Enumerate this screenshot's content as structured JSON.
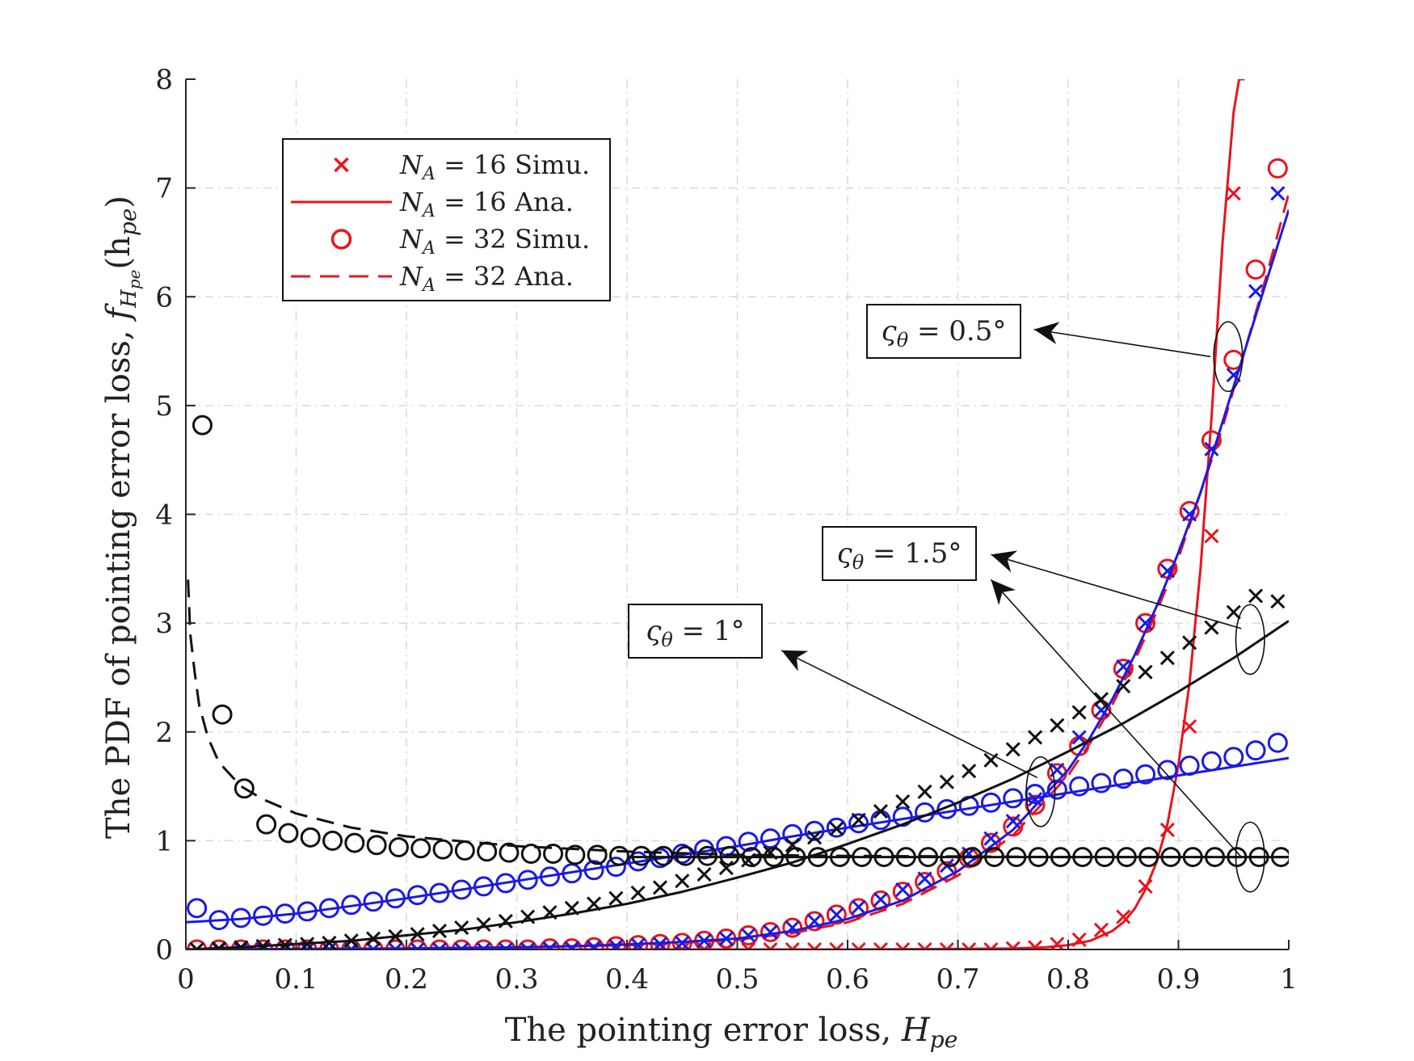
{
  "chart_data": {
    "type": "line",
    "xlabel": "The pointing error loss, ",
    "xlabel_var": "H",
    "xlabel_sub": "pe",
    "ylabel": "The PDF of pointing error loss, ",
    "ylabel_var": "f",
    "ylabel_sub": "H",
    "ylabel_subsub": "pe",
    "ylabel_arg": "(h",
    "ylabel_arg_sub": "pe",
    "ylabel_close": ")",
    "xlim": [
      0,
      1
    ],
    "ylim": [
      0,
      8
    ],
    "grid": true,
    "xticks": [
      0,
      0.1,
      0.2,
      0.3,
      0.4,
      0.5,
      0.6,
      0.7,
      0.8,
      0.9,
      1
    ],
    "xtick_labels": [
      "0",
      "0.1",
      "0.2",
      "0.3",
      "0.4",
      "0.5",
      "0.6",
      "0.7",
      "0.8",
      "0.9",
      "1"
    ],
    "yticks": [
      0,
      1,
      2,
      3,
      4,
      5,
      6,
      7,
      8
    ],
    "ytick_labels": [
      "0",
      "1",
      "2",
      "3",
      "4",
      "5",
      "6",
      "7",
      "8"
    ],
    "legend": {
      "placement": "top-left",
      "entries": [
        {
          "label": "N",
          "sub": "A",
          "rest": " = 16 Simu.",
          "marker": "x",
          "line": "none",
          "color": "#e8141e"
        },
        {
          "label": "N",
          "sub": "A",
          "rest": " = 16 Ana.",
          "marker": "none",
          "line": "solid",
          "color": "#e8141e"
        },
        {
          "label": "N",
          "sub": "A",
          "rest": " = 32 Simu.",
          "marker": "o",
          "line": "none",
          "color": "#e8141e"
        },
        {
          "label": "N",
          "sub": "A",
          "rest": " = 32 Ana.",
          "marker": "none",
          "line": "dashed",
          "color": "#e8141e"
        }
      ]
    },
    "annotations": [
      {
        "sym": "ς",
        "sub": "θ",
        "text": " = 0.5°",
        "target_x": 0.95,
        "target_y": 5.4,
        "label_x": 0.82,
        "label_y": 5.68
      },
      {
        "sym": "ς",
        "sub": "θ",
        "text": " = 1.5°",
        "target_x": 0.97,
        "target_y": 2.9,
        "label_x": 0.73,
        "label_y": 3.68
      },
      {
        "sym": "ς",
        "sub": "θ",
        "text": " = 1°",
        "target_x": 0.77,
        "target_y": 1.5,
        "label_x": 0.54,
        "label_y": 2.75
      }
    ],
    "ellipses": [
      {
        "cx": 0.945,
        "cy": 5.45,
        "rx": 0.013,
        "ry": 0.32
      },
      {
        "cx": 0.965,
        "cy": 2.85,
        "rx": 0.013,
        "ry": 0.32
      },
      {
        "cx": 0.775,
        "cy": 1.45,
        "rx": 0.013,
        "ry": 0.32
      },
      {
        "cx": 0.965,
        "cy": 0.85,
        "rx": 0.013,
        "ry": 0.32
      }
    ],
    "series": [
      {
        "name": "0.5deg NA=16 Ana.",
        "color": "#e8141e",
        "style": "solid",
        "x": [
          0,
          0.1,
          0.2,
          0.3,
          0.4,
          0.5,
          0.6,
          0.7,
          0.75,
          0.78,
          0.8,
          0.82,
          0.84,
          0.85,
          0.86,
          0.87,
          0.88,
          0.89,
          0.9,
          0.91,
          0.92,
          0.93,
          0.94,
          0.95,
          0.955,
          0.96
        ],
        "y": [
          0,
          0,
          0,
          0,
          0,
          0,
          0,
          0.005,
          0.01,
          0.02,
          0.04,
          0.08,
          0.17,
          0.25,
          0.37,
          0.55,
          0.8,
          1.15,
          1.7,
          2.45,
          3.5,
          4.9,
          6.5,
          7.7,
          8.0,
          8.0
        ]
      },
      {
        "name": "0.5deg NA=16 Simu.",
        "color": "#e8141e",
        "marker": "x",
        "x": [
          0.01,
          0.03,
          0.05,
          0.07,
          0.09,
          0.11,
          0.13,
          0.15,
          0.17,
          0.19,
          0.21,
          0.23,
          0.25,
          0.27,
          0.29,
          0.31,
          0.33,
          0.35,
          0.37,
          0.39,
          0.41,
          0.43,
          0.45,
          0.47,
          0.49,
          0.51,
          0.53,
          0.55,
          0.57,
          0.59,
          0.61,
          0.63,
          0.65,
          0.67,
          0.69,
          0.71,
          0.73,
          0.75,
          0.77,
          0.79,
          0.81,
          0.83,
          0.85,
          0.87,
          0.89,
          0.91,
          0.93,
          0.95
        ],
        "y": [
          0,
          0,
          0,
          0,
          0,
          0,
          0,
          0,
          0,
          0,
          0,
          0,
          0,
          0,
          0,
          0,
          0,
          0,
          0,
          0,
          0,
          0,
          0,
          0,
          0,
          0,
          0,
          0,
          0,
          0,
          0,
          0,
          0,
          0,
          0,
          0,
          0,
          0.01,
          0.02,
          0.05,
          0.09,
          0.18,
          0.3,
          0.58,
          1.1,
          2.05,
          3.8,
          6.95
        ]
      },
      {
        "name": "0.5deg NA=32 Ana.",
        "color": "#e8141e",
        "style": "dashed",
        "x": [
          0,
          0.1,
          0.2,
          0.3,
          0.35,
          0.4,
          0.45,
          0.5,
          0.55,
          0.6,
          0.65,
          0.7,
          0.75,
          0.8,
          0.82,
          0.84,
          0.86,
          0.88,
          0.9,
          0.92,
          0.94,
          0.96,
          0.98,
          1.0
        ],
        "y": [
          0,
          0.005,
          0.01,
          0.02,
          0.03,
          0.04,
          0.06,
          0.09,
          0.15,
          0.25,
          0.42,
          0.68,
          1.05,
          1.6,
          1.9,
          2.25,
          2.65,
          3.1,
          3.6,
          4.2,
          4.8,
          5.5,
          6.2,
          6.95
        ]
      },
      {
        "name": "0.5deg NA=32 Simu.",
        "color": "#e8141e",
        "marker": "o",
        "x": [
          0.01,
          0.03,
          0.05,
          0.07,
          0.09,
          0.11,
          0.13,
          0.15,
          0.17,
          0.19,
          0.21,
          0.23,
          0.25,
          0.27,
          0.29,
          0.31,
          0.33,
          0.35,
          0.37,
          0.39,
          0.41,
          0.43,
          0.45,
          0.47,
          0.49,
          0.51,
          0.53,
          0.55,
          0.57,
          0.59,
          0.61,
          0.63,
          0.65,
          0.67,
          0.69,
          0.71,
          0.73,
          0.75,
          0.77,
          0.79,
          0.81,
          0.83,
          0.85,
          0.87,
          0.89,
          0.91,
          0.93,
          0.95,
          0.97,
          0.99
        ],
        "y": [
          0,
          0,
          0,
          0,
          0,
          0,
          0,
          0,
          0,
          0,
          0,
          0,
          0,
          0,
          0,
          0,
          0.01,
          0.01,
          0.02,
          0.03,
          0.04,
          0.05,
          0.06,
          0.08,
          0.1,
          0.13,
          0.16,
          0.2,
          0.26,
          0.32,
          0.38,
          0.45,
          0.53,
          0.62,
          0.72,
          0.84,
          0.98,
          1.13,
          1.33,
          1.62,
          1.87,
          2.2,
          2.58,
          3.0,
          3.5,
          4.03,
          4.68,
          5.42,
          6.25,
          7.18
        ]
      },
      {
        "name": "0.5deg NA=16 blue Ana.",
        "color": "#1a1ae6",
        "style": "solid",
        "x": [
          0,
          0.1,
          0.2,
          0.3,
          0.35,
          0.4,
          0.45,
          0.5,
          0.55,
          0.6,
          0.65,
          0.7,
          0.75,
          0.8,
          0.82,
          0.84,
          0.86,
          0.88,
          0.9,
          0.92,
          0.94,
          0.96,
          0.98,
          1.0
        ],
        "y": [
          0,
          0.005,
          0.01,
          0.02,
          0.03,
          0.045,
          0.07,
          0.1,
          0.17,
          0.28,
          0.45,
          0.72,
          1.1,
          1.65,
          1.95,
          2.3,
          2.7,
          3.15,
          3.65,
          4.2,
          4.85,
          5.5,
          6.15,
          6.8
        ]
      },
      {
        "name": "0.5deg NA=16 blue Simu.",
        "color": "#1a1ae6",
        "marker": "x",
        "x": [
          0.01,
          0.03,
          0.05,
          0.07,
          0.09,
          0.11,
          0.13,
          0.15,
          0.17,
          0.19,
          0.21,
          0.23,
          0.25,
          0.27,
          0.29,
          0.31,
          0.33,
          0.35,
          0.37,
          0.39,
          0.41,
          0.43,
          0.45,
          0.47,
          0.49,
          0.51,
          0.53,
          0.55,
          0.57,
          0.59,
          0.61,
          0.63,
          0.65,
          0.67,
          0.69,
          0.71,
          0.73,
          0.75,
          0.77,
          0.79,
          0.81,
          0.83,
          0.85,
          0.87,
          0.89,
          0.91,
          0.93,
          0.95,
          0.97,
          0.99
        ],
        "y": [
          0,
          0,
          0,
          0,
          0,
          0,
          0,
          0,
          0,
          0,
          0,
          0,
          0,
          0,
          0,
          0,
          0.01,
          0.01,
          0.02,
          0.03,
          0.04,
          0.05,
          0.06,
          0.08,
          0.1,
          0.13,
          0.16,
          0.2,
          0.26,
          0.32,
          0.39,
          0.46,
          0.55,
          0.65,
          0.77,
          0.88,
          1.02,
          1.18,
          1.38,
          1.65,
          1.95,
          2.2,
          2.6,
          3.0,
          3.48,
          4.0,
          4.6,
          5.28,
          6.05,
          6.95
        ]
      },
      {
        "name": "1.5deg blue Ana.",
        "color": "#1a1ae6",
        "style": "solid",
        "x": [
          0,
          0.05,
          0.1,
          0.15,
          0.2,
          0.25,
          0.3,
          0.35,
          0.4,
          0.45,
          0.5,
          0.55,
          0.6,
          0.65,
          0.7,
          0.75,
          0.8,
          0.85,
          0.9,
          0.95,
          1.0
        ],
        "y": [
          0.25,
          0.28,
          0.33,
          0.4,
          0.47,
          0.55,
          0.63,
          0.71,
          0.79,
          0.87,
          0.95,
          1.04,
          1.12,
          1.2,
          1.28,
          1.36,
          1.44,
          1.52,
          1.6,
          1.68,
          1.76
        ]
      },
      {
        "name": "1.5deg blue Simu.",
        "color": "#1a1ae6",
        "marker": "o",
        "x": [
          0.01,
          0.03,
          0.05,
          0.07,
          0.09,
          0.11,
          0.13,
          0.15,
          0.17,
          0.19,
          0.21,
          0.23,
          0.25,
          0.27,
          0.29,
          0.31,
          0.33,
          0.35,
          0.37,
          0.39,
          0.41,
          0.43,
          0.45,
          0.47,
          0.49,
          0.51,
          0.53,
          0.55,
          0.57,
          0.59,
          0.61,
          0.63,
          0.65,
          0.67,
          0.69,
          0.71,
          0.73,
          0.75,
          0.77,
          0.79,
          0.81,
          0.83,
          0.85,
          0.87,
          0.89,
          0.91,
          0.93,
          0.95,
          0.97,
          0.99
        ],
        "y": [
          0.38,
          0.27,
          0.29,
          0.31,
          0.33,
          0.35,
          0.38,
          0.41,
          0.44,
          0.47,
          0.5,
          0.52,
          0.55,
          0.58,
          0.61,
          0.64,
          0.67,
          0.7,
          0.73,
          0.76,
          0.81,
          0.84,
          0.88,
          0.92,
          0.95,
          0.99,
          1.02,
          1.06,
          1.09,
          1.12,
          1.16,
          1.19,
          1.22,
          1.26,
          1.29,
          1.32,
          1.35,
          1.39,
          1.43,
          1.47,
          1.5,
          1.53,
          1.57,
          1.61,
          1.65,
          1.69,
          1.73,
          1.77,
          1.83,
          1.9
        ]
      },
      {
        "name": "1deg black Ana.",
        "color": "#111111",
        "style": "solid",
        "x": [
          0,
          0.05,
          0.1,
          0.15,
          0.2,
          0.25,
          0.3,
          0.35,
          0.4,
          0.45,
          0.5,
          0.55,
          0.6,
          0.65,
          0.7,
          0.75,
          0.8,
          0.85,
          0.9,
          0.95,
          1.0
        ],
        "y": [
          0.0,
          0.02,
          0.05,
          0.08,
          0.13,
          0.18,
          0.25,
          0.33,
          0.42,
          0.53,
          0.66,
          0.8,
          0.97,
          1.15,
          1.35,
          1.57,
          1.82,
          2.08,
          2.37,
          2.68,
          3.02
        ]
      },
      {
        "name": "1deg black Simu.",
        "color": "#111111",
        "marker": "x",
        "x": [
          0.01,
          0.03,
          0.05,
          0.07,
          0.09,
          0.11,
          0.13,
          0.15,
          0.17,
          0.19,
          0.21,
          0.23,
          0.25,
          0.27,
          0.29,
          0.31,
          0.33,
          0.35,
          0.37,
          0.39,
          0.41,
          0.43,
          0.45,
          0.47,
          0.49,
          0.51,
          0.53,
          0.55,
          0.57,
          0.59,
          0.61,
          0.63,
          0.65,
          0.67,
          0.69,
          0.71,
          0.73,
          0.75,
          0.77,
          0.79,
          0.81,
          0.83,
          0.85,
          0.87,
          0.89,
          0.91,
          0.93,
          0.95,
          0.97,
          0.99
        ],
        "y": [
          0.0,
          0.01,
          0.02,
          0.03,
          0.04,
          0.05,
          0.06,
          0.08,
          0.1,
          0.12,
          0.14,
          0.17,
          0.2,
          0.23,
          0.26,
          0.3,
          0.34,
          0.38,
          0.42,
          0.47,
          0.52,
          0.57,
          0.63,
          0.69,
          0.75,
          0.82,
          0.89,
          0.96,
          1.03,
          1.11,
          1.19,
          1.27,
          1.36,
          1.45,
          1.54,
          1.64,
          1.74,
          1.84,
          1.95,
          2.06,
          2.18,
          2.3,
          2.42,
          2.55,
          2.68,
          2.82,
          2.96,
          3.1,
          3.25,
          3.2
        ]
      },
      {
        "name": "1.5deg black Ana.",
        "color": "#111111",
        "style": "dashed",
        "x": [
          0.002,
          0.004,
          0.008,
          0.012,
          0.02,
          0.03,
          0.05,
          0.07,
          0.1,
          0.15,
          0.2,
          0.3,
          0.4,
          0.5,
          0.6,
          0.7,
          0.8,
          0.9,
          1.0
        ],
        "y": [
          3.4,
          2.9,
          2.55,
          2.25,
          1.95,
          1.72,
          1.5,
          1.38,
          1.25,
          1.12,
          1.04,
          0.95,
          0.9,
          0.87,
          0.86,
          0.855,
          0.85,
          0.85,
          0.85
        ]
      },
      {
        "name": "1.5deg black Simu.",
        "color": "#111111",
        "marker": "o",
        "x": [
          0.015,
          0.033,
          0.053,
          0.073,
          0.093,
          0.113,
          0.133,
          0.153,
          0.173,
          0.193,
          0.213,
          0.233,
          0.253,
          0.273,
          0.293,
          0.313,
          0.333,
          0.353,
          0.373,
          0.393,
          0.413,
          0.433,
          0.453,
          0.473,
          0.493,
          0.513,
          0.533,
          0.553,
          0.573,
          0.593,
          0.613,
          0.633,
          0.653,
          0.673,
          0.693,
          0.713,
          0.733,
          0.753,
          0.773,
          0.793,
          0.813,
          0.833,
          0.853,
          0.873,
          0.893,
          0.913,
          0.933,
          0.953,
          0.973,
          0.993
        ],
        "y": [
          4.82,
          2.16,
          1.48,
          1.15,
          1.07,
          1.03,
          1.0,
          0.98,
          0.96,
          0.94,
          0.93,
          0.92,
          0.91,
          0.9,
          0.89,
          0.88,
          0.88,
          0.87,
          0.87,
          0.86,
          0.86,
          0.86,
          0.86,
          0.86,
          0.86,
          0.85,
          0.85,
          0.85,
          0.85,
          0.85,
          0.85,
          0.85,
          0.85,
          0.85,
          0.85,
          0.85,
          0.85,
          0.85,
          0.85,
          0.85,
          0.85,
          0.85,
          0.85,
          0.85,
          0.85,
          0.85,
          0.85,
          0.85,
          0.85,
          0.85
        ]
      },
      {
        "name": "1deg black flat Ana.",
        "color": "#111111",
        "style": "solid",
        "x": [
          0.4,
          0.5,
          0.6,
          0.7,
          0.8,
          0.9,
          1.0
        ],
        "y": [
          0.85,
          0.85,
          0.85,
          0.85,
          0.85,
          0.85,
          0.85
        ]
      }
    ]
  }
}
